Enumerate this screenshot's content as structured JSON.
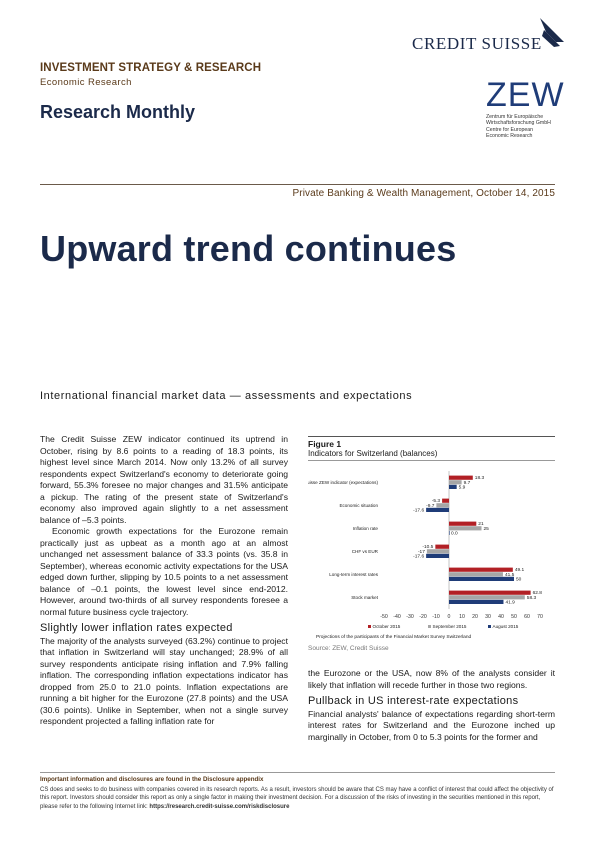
{
  "header": {
    "division": "INVESTMENT STRATEGY & RESEARCH",
    "unit": "Economic Research",
    "publication": "Research Monthly",
    "cs_logo": "CREDIT SUISSE",
    "zew_logo": "ZEW",
    "zew_sub": [
      "Zentrum für Europäische",
      "Wirtschaftsforschung GmbH",
      "Centre for European",
      "Economic Research"
    ],
    "dateline": "Private Banking & Wealth Management, October 14, 2015"
  },
  "title": "Upward trend continues",
  "subtitle": "International financial market data — assessments and expectations",
  "left_col": {
    "p1": "The Credit Suisse ZEW indicator continued its uptrend in October, rising by 8.6 points to a reading of 18.3 points, its highest level since March 2014. Now only 13.2% of all survey respondents expect Switzerland's economy to deteriorate going forward, 55.3% foresee no major changes and 31.5% anticipate a pickup. The rating of the present state of Switzerland's economy also improved again slightly to a net assessment balance of –5.3 points.",
    "p2": "Economic growth expectations for the Eurozone remain practically just as upbeat as a month ago at an almost unchanged net assessment balance of 33.3 points (vs. 35.8 in September), whereas economic activity expectations for the USA edged down further, slipping by 10.5 points to a net assessment balance of –0.1 points, the lowest level since end-2012. However, around two-thirds of all survey respondents foresee a normal future business cycle trajectory.",
    "h_inflation": "Slightly lower inflation rates expected",
    "p3": "The majority of the analysts surveyed (63.2%) continue to project that inflation in Switzerland will stay unchanged; 28.9% of all survey respondents anticipate rising inflation and 7.9% falling inflation. The corresponding inflation expectations indicator has dropped from 25.0 to 21.0 points. Inflation expectations are running a bit higher for the Eurozone (27.8 points) and the USA (30.6 points). Unlike in September, when not a single survey respondent projected a falling inflation rate for"
  },
  "right_col": {
    "p1": "the Eurozone or the USA, now 8% of the analysts consider it likely that inflation will recede further in those two regions.",
    "h_rates": "Pullback in US interest-rate expectations",
    "p2": "Financial analysts' balance of expectations regarding short-term interest rates for Switzerland and the Eurozone inched up marginally in October, from 0 to 5.3 points for the former and"
  },
  "figure": {
    "label": "Figure 1",
    "title": "Indicators for Switzerland (balances)",
    "caption": "Projections of the participants of the Financial Market Survey Switzerland",
    "source": "Source: ZEW, Credit Suisse"
  },
  "chart_data": {
    "type": "bar",
    "orientation": "horizontal",
    "categories": [
      "Credit Suisse ZEW indicator (expectations)",
      "Economic situation",
      "Inflation rate",
      "CHF vs EUR",
      "Long-term interest rates",
      "Stock market"
    ],
    "series": [
      {
        "name": "October 2015",
        "color": "#b22025",
        "values": [
          18.3,
          -5.3,
          21,
          -10.5,
          49.1,
          62.8
        ]
      },
      {
        "name": "September 2015",
        "color": "#a6a6a6",
        "values": [
          9.7,
          -9.7,
          25,
          -17,
          41.5,
          58.3
        ]
      },
      {
        "name": "August 2015",
        "color": "#1f3c78",
        "values": [
          5.9,
          -17.6,
          0.0,
          -17.6,
          50,
          41.9
        ]
      }
    ],
    "xlim": [
      -50,
      70
    ],
    "xticks": [
      -50,
      -40,
      -30,
      -20,
      -10,
      0,
      10,
      20,
      30,
      40,
      50,
      60,
      70
    ],
    "legend": "bottom"
  },
  "footer": {
    "important": "Important information and disclosures are found in the Disclosure appendix",
    "text": "CS does and seeks to do business with companies covered in its research reports. As a result, investors should be aware that CS may have a conflict of interest that could affect the objectivity of this report. Investors should consider this report as only a single factor in making their investment decision. For a discussion of the risks of investing in the securities mentioned in this report, please refer to the following Internet link:",
    "link": "https://research.credit-suisse.com/riskdisclosure"
  },
  "colors": {
    "brand_navy": "#1b2a4a",
    "header_brown": "#5a3a1a"
  }
}
